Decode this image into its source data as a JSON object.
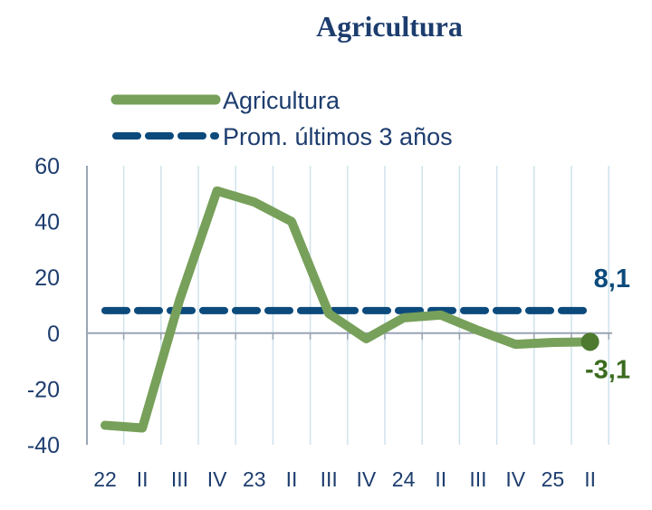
{
  "chart_data": {
    "type": "line",
    "title": "Agricultura",
    "xlabel": "",
    "ylabel": "",
    "categories": [
      "22",
      "II",
      "III",
      "IV",
      "23",
      "II",
      "III",
      "IV",
      "24",
      "II",
      "III",
      "IV",
      "25",
      "II"
    ],
    "ylim": [
      -40,
      60
    ],
    "yticks": [
      60,
      40,
      20,
      0,
      -20,
      -40
    ],
    "grid": "vertical",
    "legend": "top-left",
    "series": [
      {
        "name": "Agricultura",
        "color": "#77a05a",
        "style": "solid",
        "values": [
          -33,
          -34,
          12,
          51,
          47,
          40,
          7,
          -2,
          5.5,
          6.5,
          1,
          -4,
          -3.3,
          -3.1
        ]
      },
      {
        "name": "Prom. últimos 3 años",
        "color": "#0c4a7c",
        "style": "dashed",
        "value": 8.1
      }
    ],
    "annotations": [
      {
        "text": "8,1",
        "color": "#0c4a7c",
        "series": "Prom. últimos 3 años"
      },
      {
        "text": "-3,1",
        "color": "#3a6b1e",
        "series": "Agricultura"
      }
    ]
  }
}
